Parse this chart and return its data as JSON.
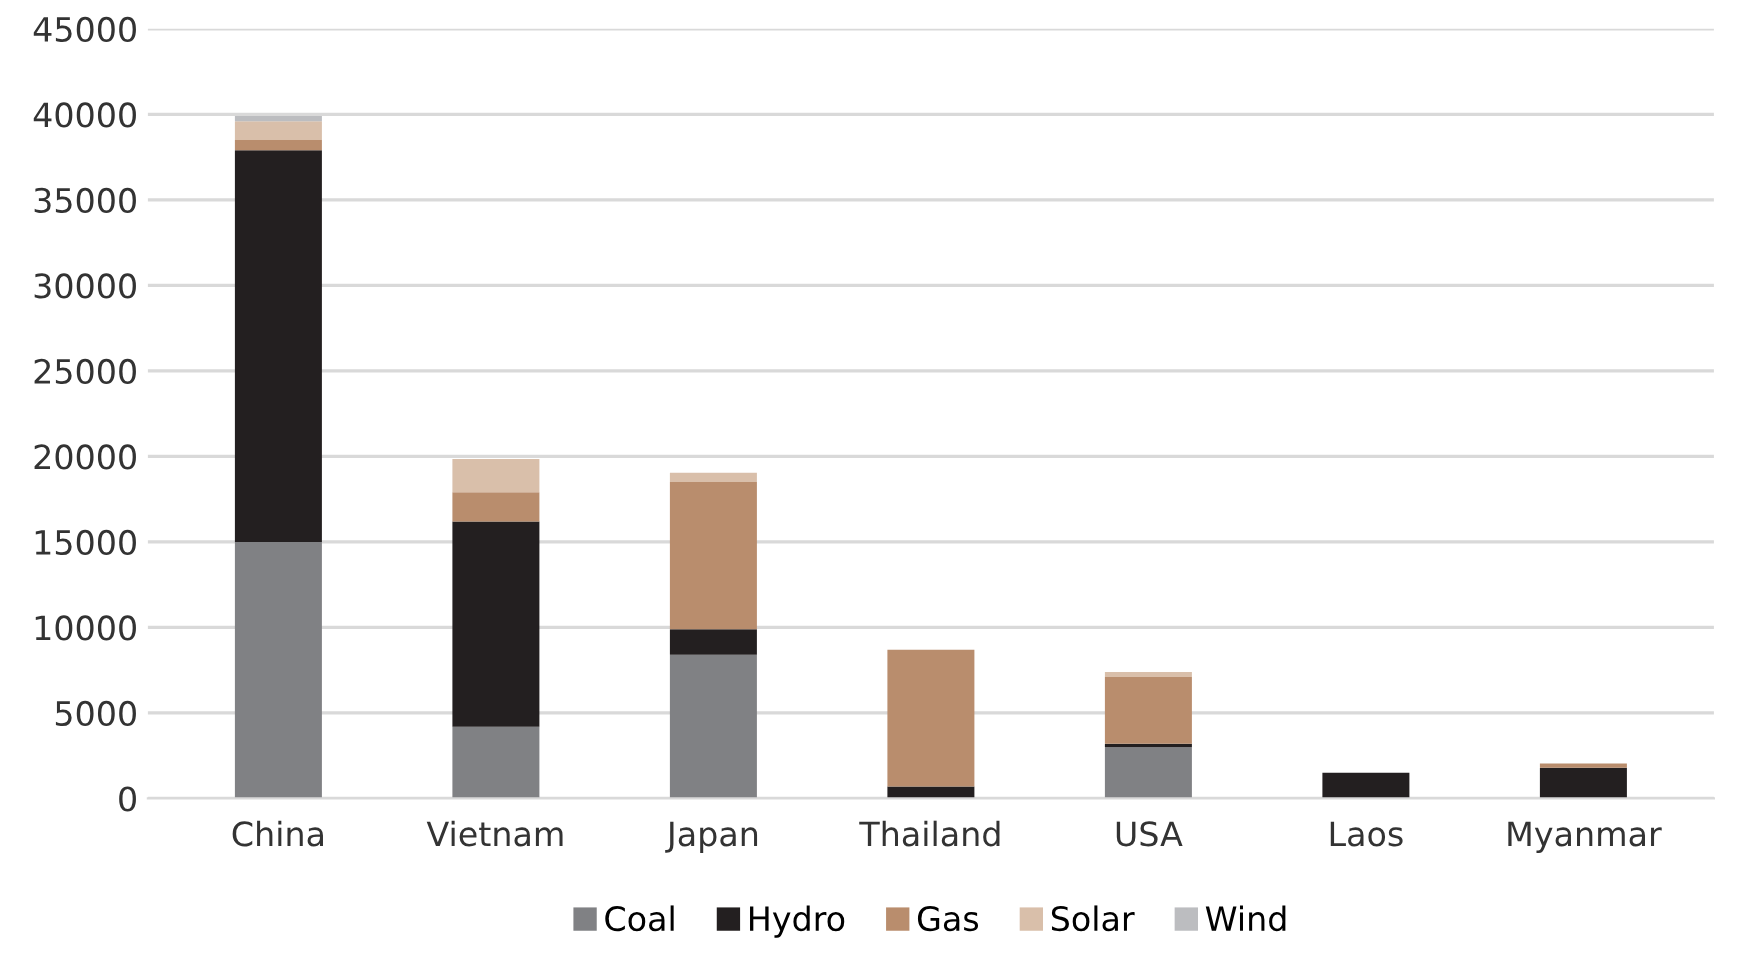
{
  "chart_data": {
    "type": "bar",
    "stacked": true,
    "categories": [
      "China",
      "Vietnam",
      "Japan",
      "Thailand",
      "USA",
      "Laos",
      "Myanmar"
    ],
    "series": [
      {
        "name": "Coal",
        "color": "#808184",
        "values": [
          15000,
          4200,
          8400,
          0,
          3000,
          0,
          0
        ]
      },
      {
        "name": "Hydro",
        "color": "#231f20",
        "values": [
          22900,
          12000,
          1500,
          700,
          200,
          1500,
          1800
        ]
      },
      {
        "name": "Gas",
        "color": "#b98d6d",
        "values": [
          600,
          1700,
          8600,
          8000,
          3900,
          0,
          250
        ]
      },
      {
        "name": "Solar",
        "color": "#d9bfaa",
        "values": [
          1100,
          1950,
          550,
          0,
          300,
          0,
          0
        ]
      },
      {
        "name": "Wind",
        "color": "#bcbdc0",
        "values": [
          300,
          0,
          0,
          0,
          0,
          0,
          0
        ]
      }
    ],
    "ylim": [
      0,
      45000
    ],
    "yticks": [
      0,
      5000,
      10000,
      15000,
      20000,
      25000,
      30000,
      35000,
      40000,
      45000
    ],
    "grid": "y",
    "legend": "bottom"
  }
}
